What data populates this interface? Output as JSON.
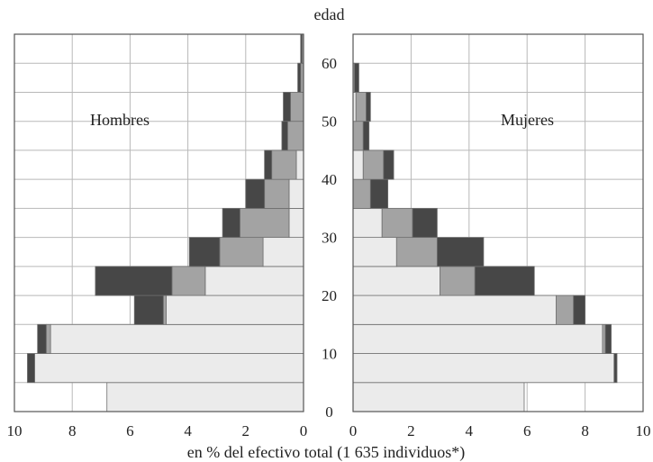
{
  "chart_data": {
    "type": "bar",
    "subtype": "population-pyramid",
    "title": "",
    "xlabel": "en % del efectivo total (1 635 individuos*)",
    "ylabel": "edad",
    "panels": {
      "left": {
        "label": "Hombres",
        "xlim": [
          10,
          0
        ],
        "x_ticks": [
          "10",
          "8",
          "6",
          "4",
          "2",
          "0"
        ]
      },
      "right": {
        "label": "Mujeres",
        "xlim": [
          0,
          10
        ],
        "x_ticks": [
          "0",
          "2",
          "4",
          "6",
          "8",
          "10"
        ]
      }
    },
    "y_ticks": [
      "0",
      "10",
      "20",
      "30",
      "40",
      "50",
      "60"
    ],
    "ylim": [
      0,
      65
    ],
    "age_groups": [
      "0-4",
      "5-9",
      "10-14",
      "15-19",
      "20-24",
      "25-29",
      "30-34",
      "35-39",
      "40-44",
      "45-49",
      "50-54",
      "55-59",
      "60-64"
    ],
    "segment_colors": [
      "#ebebeb",
      "#a3a3a3",
      "#474747"
    ],
    "series": [
      {
        "side": "Hombres",
        "segments": [
          [
            6.8,
            0.0,
            0.0
          ],
          [
            9.3,
            0.0,
            0.25
          ],
          [
            8.75,
            0.15,
            0.3
          ],
          [
            4.75,
            0.1,
            1.0
          ],
          [
            3.4,
            1.15,
            2.65
          ],
          [
            1.4,
            1.5,
            1.05
          ],
          [
            0.5,
            1.7,
            0.6
          ],
          [
            0.5,
            0.85,
            0.65
          ],
          [
            0.25,
            0.85,
            0.25
          ],
          [
            0.0,
            0.55,
            0.2
          ],
          [
            0.0,
            0.45,
            0.25
          ],
          [
            0.0,
            0.1,
            0.1
          ],
          [
            0.0,
            0.05,
            0.05
          ]
        ]
      },
      {
        "side": "Mujeres",
        "segments": [
          [
            5.9,
            0.0,
            0.0
          ],
          [
            9.0,
            0.0,
            0.1
          ],
          [
            8.6,
            0.1,
            0.2
          ],
          [
            7.0,
            0.6,
            0.4
          ],
          [
            3.0,
            1.2,
            2.05
          ],
          [
            1.5,
            1.4,
            1.6
          ],
          [
            1.0,
            1.05,
            0.85
          ],
          [
            0.0,
            0.6,
            0.6
          ],
          [
            0.35,
            0.7,
            0.35
          ],
          [
            0.0,
            0.35,
            0.2
          ],
          [
            0.1,
            0.35,
            0.15
          ],
          [
            0.0,
            0.05,
            0.15
          ],
          [
            0.0,
            0.0,
            0.0
          ]
        ]
      }
    ],
    "grid": true
  }
}
